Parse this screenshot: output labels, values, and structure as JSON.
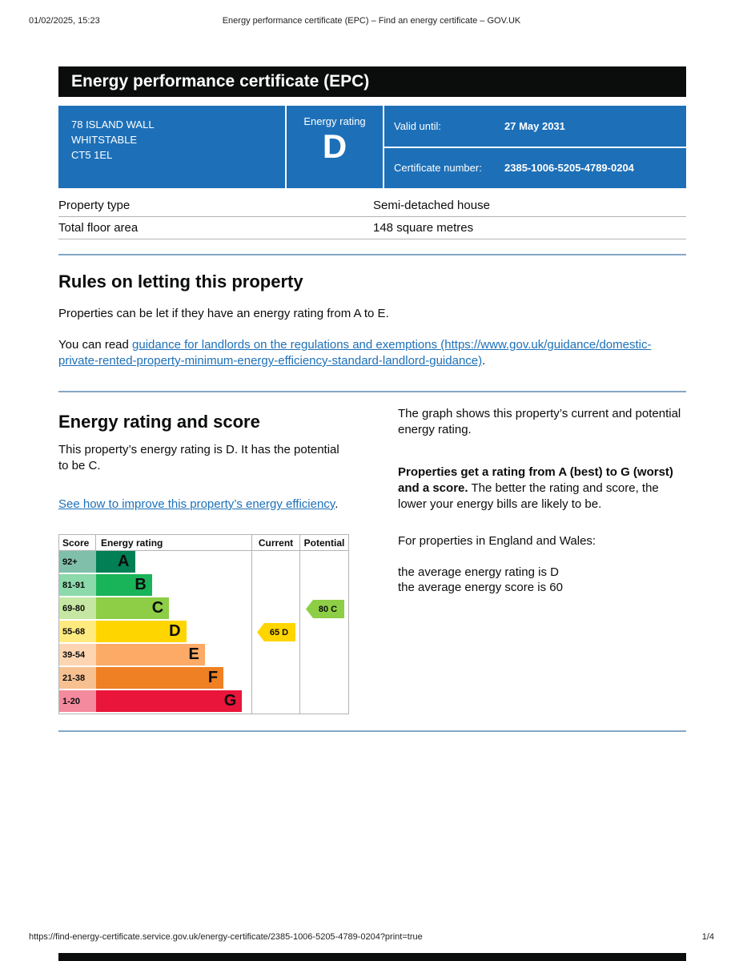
{
  "print_header": {
    "datetime": "01/02/2025, 15:23",
    "title": "Energy performance certificate (EPC) – Find an energy certificate – GOV.UK"
  },
  "banner": {
    "title": "Energy performance certificate (EPC)"
  },
  "summary_box": {
    "address_lines": {
      "line1": "78 ISLAND WALL",
      "line2": "WHITSTABLE",
      "line3": "CT5 1EL"
    },
    "rating_label": "Energy rating",
    "rating_value": "D",
    "valid_until_label": "Valid until:",
    "valid_until_value": "27 May 2031",
    "certificate_number_label": "Certificate number:",
    "certificate_number_value": "2385-1006-5205-4789-0204",
    "box_color": "#1d70b8"
  },
  "property_table": {
    "rows": [
      {
        "label": "Property type",
        "value": "Semi-detached house"
      },
      {
        "label": "Total floor area",
        "value": "148 square metres"
      }
    ]
  },
  "letting_section": {
    "heading": "Rules on letting this property",
    "paragraph1": "Properties can be let if they have an energy rating from A to E.",
    "paragraph2_prefix": "You can read ",
    "link_text": "guidance for landlords on the regulations and exemptions (https://www.gov.uk/guidance/domestic-private-rented-property-minimum-energy-efficiency-standard-landlord-guidance)",
    "paragraph2_suffix": "."
  },
  "rating_section": {
    "heading": "Energy rating and score",
    "intro": "This property’s energy rating is D. It has the potential to be C.",
    "improve_link": "See how to improve this property’s energy efficiency",
    "improve_link_suffix": ".",
    "right_para1": "The graph shows this property’s current and potential energy rating.",
    "right_para2_bold": "Properties get a rating from A (best) to G (worst) and a score.",
    "right_para2_rest": " The better the rating and score, the lower your energy bills are likely to be.",
    "right_para3": "For properties in England and Wales:",
    "right_avg_rating": "the average energy rating is D",
    "right_avg_score": "the average energy score is 60"
  },
  "chart_data": {
    "type": "bar",
    "title": "Energy rating and score chart",
    "headers": {
      "score": "Score",
      "rating": "Energy rating",
      "current": "Current",
      "potential": "Potential"
    },
    "bands": [
      {
        "range": "92+",
        "letter": "A",
        "color": "#008054",
        "tint": "#80c0aa",
        "width_pct": 25
      },
      {
        "range": "81-91",
        "letter": "B",
        "color": "#19b459",
        "tint": "#8cd9ac",
        "width_pct": 36
      },
      {
        "range": "69-80",
        "letter": "C",
        "color": "#8dce46",
        "tint": "#c6e7a3",
        "width_pct": 47
      },
      {
        "range": "55-68",
        "letter": "D",
        "color": "#ffd500",
        "tint": "#ffea80",
        "width_pct": 58
      },
      {
        "range": "39-54",
        "letter": "E",
        "color": "#fcaa65",
        "tint": "#fdd5b2",
        "width_pct": 70
      },
      {
        "range": "21-38",
        "letter": "F",
        "color": "#ef8023",
        "tint": "#f7c091",
        "width_pct": 82
      },
      {
        "range": "1-20",
        "letter": "G",
        "color": "#e9153b",
        "tint": "#f48a9d",
        "width_pct": 94
      }
    ],
    "current": {
      "label": "65 D",
      "score": 65,
      "band": "D",
      "color": "#ffd500"
    },
    "potential": {
      "label": "80 C",
      "score": 80,
      "band": "C",
      "color": "#8dce46"
    }
  },
  "print_footer": {
    "url": "https://find-energy-certificate.service.gov.uk/energy-certificate/2385-1006-5205-4789-0204?print=true",
    "page": "1/4"
  }
}
